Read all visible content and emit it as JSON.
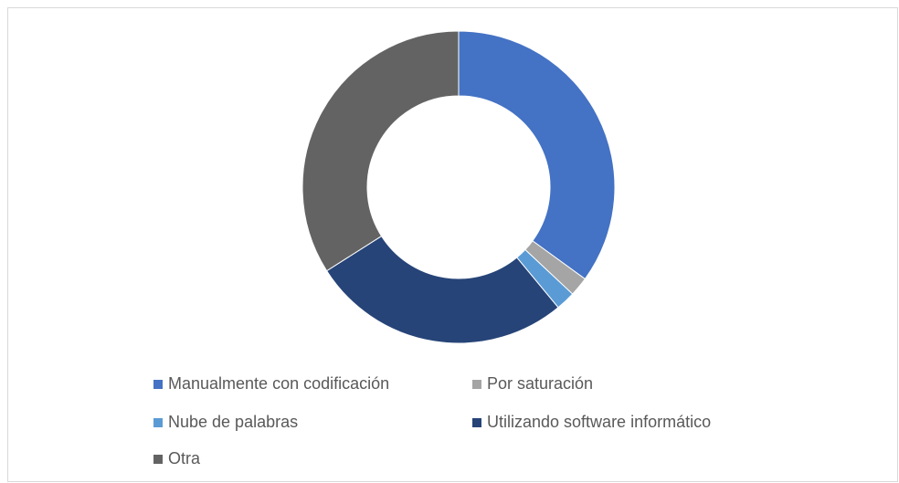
{
  "chart_data": {
    "type": "donut",
    "categories": [
      "Manualmente con codificación",
      "Por saturación",
      "Nube de palabras",
      "Utilizando software informático",
      "Otra"
    ],
    "values": [
      35,
      2,
      2,
      27,
      34
    ],
    "colors": [
      "#4472c4",
      "#a5a5a5",
      "#5b9bd5",
      "#264478",
      "#636363"
    ],
    "legend": "bottom"
  }
}
